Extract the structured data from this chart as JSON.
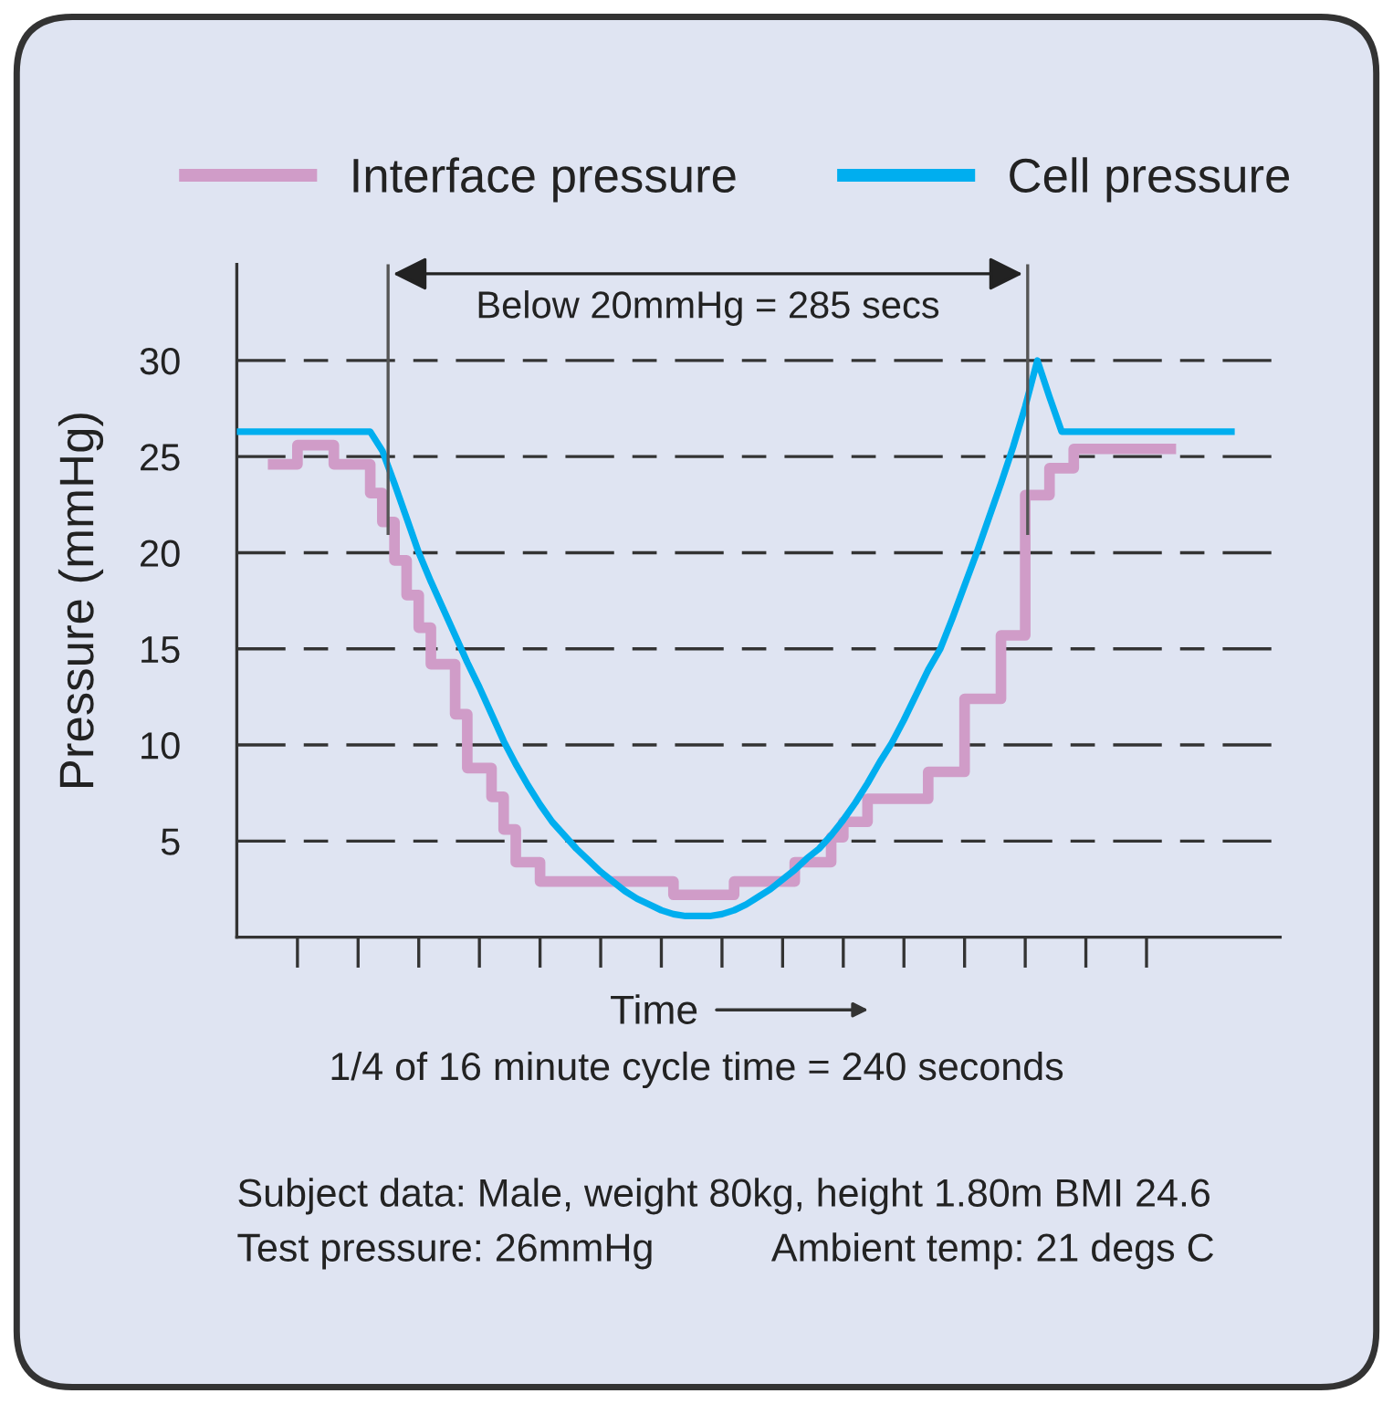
{
  "chart_data": {
    "type": "line",
    "xlabel": "Time",
    "ylabel": "Pressure (mmHg)",
    "categories": [
      null,
      null,
      null,
      null,
      null,
      null,
      null,
      null,
      null,
      null,
      null,
      null,
      null,
      null,
      null,
      null,
      null,
      null,
      null,
      null,
      null,
      null,
      null,
      null,
      null,
      null,
      null,
      null,
      null,
      null,
      null,
      null,
      null,
      null,
      null,
      null,
      null,
      null,
      null,
      null,
      null,
      null,
      null,
      null,
      null,
      null,
      null,
      null,
      null,
      null,
      null,
      null,
      null,
      null,
      null,
      null,
      null,
      null,
      null,
      null,
      null,
      null,
      null,
      null,
      null,
      null,
      null,
      null,
      null,
      null,
      null,
      null,
      null,
      null,
      null,
      null,
      null,
      null,
      null,
      null,
      null,
      null,
      null
    ],
    "ylim": [
      0,
      35
    ],
    "yticks": [
      5,
      10,
      15,
      20,
      25,
      30
    ],
    "grid": "y",
    "legend": "top",
    "line_style": "solid",
    "marker": "none",
    "series": [
      {
        "name": "Interface pressure",
        "type": "step",
        "color": "#d09cc8",
        "values": [
          null,
          null,
          null,
          24.6,
          24.6,
          25.6,
          25.6,
          25.6,
          24.6,
          24.6,
          24.6,
          23.1,
          21.6,
          19.6,
          17.8,
          16.1,
          14.2,
          14.2,
          11.6,
          8.8,
          8.8,
          7.3,
          5.6,
          3.9,
          3.9,
          2.9,
          2.9,
          2.9,
          2.9,
          2.9,
          2.9,
          2.9,
          2.9,
          2.9,
          2.9,
          2.9,
          2.2,
          2.2,
          2.2,
          2.2,
          2.2,
          2.9,
          2.9,
          2.9,
          2.9,
          2.9,
          3.9,
          3.9,
          3.9,
          5.2,
          6.0,
          6.0,
          7.2,
          7.2,
          7.2,
          7.2,
          7.2,
          8.6,
          8.6,
          8.6,
          12.4,
          12.4,
          12.4,
          15.7,
          15.7,
          23.0,
          23.0,
          24.4,
          24.4,
          25.4,
          25.4,
          25.4,
          25.4,
          25.4,
          25.4,
          25.4,
          25.4,
          25.4,
          null,
          null,
          null,
          null,
          null
        ]
      },
      {
        "name": "Cell pressure",
        "type": "line",
        "color": "#00aeef",
        "values": [
          26.3,
          26.3,
          26.3,
          26.3,
          26.3,
          26.3,
          26.3,
          26.3,
          26.3,
          26.3,
          26.3,
          26.3,
          25.3,
          23.6,
          21.8,
          20.0,
          18.5,
          17.1,
          15.7,
          14.3,
          13.0,
          11.6,
          10.2,
          9.0,
          7.9,
          6.9,
          6.0,
          5.3,
          4.6,
          4.0,
          3.4,
          2.9,
          2.4,
          2.0,
          1.7,
          1.4,
          1.2,
          1.1,
          1.1,
          1.1,
          1.2,
          1.4,
          1.7,
          2.1,
          2.5,
          3.0,
          3.5,
          4.1,
          4.6,
          5.3,
          6.1,
          7.0,
          8.0,
          9.1,
          10.1,
          11.3,
          12.6,
          13.9,
          15.0,
          16.6,
          18.3,
          20.0,
          21.8,
          23.6,
          25.5,
          27.6,
          30.0,
          28.1,
          26.3,
          26.3,
          26.3,
          26.3,
          26.3,
          26.3,
          26.3,
          26.3,
          26.3,
          26.3,
          26.3,
          26.3,
          26.3,
          26.3,
          26.3
        ]
      }
    ],
    "annotations": [
      "Below 20mmHg = 285 secs",
      "1/4 of 16 minute cycle time = 240 seconds",
      "Subject data: Male, weight 80kg, height 1.80m BMI 24.6",
      "Test pressure: 26mmHg",
      "Ambient temp: 21 degs C"
    ]
  }
}
